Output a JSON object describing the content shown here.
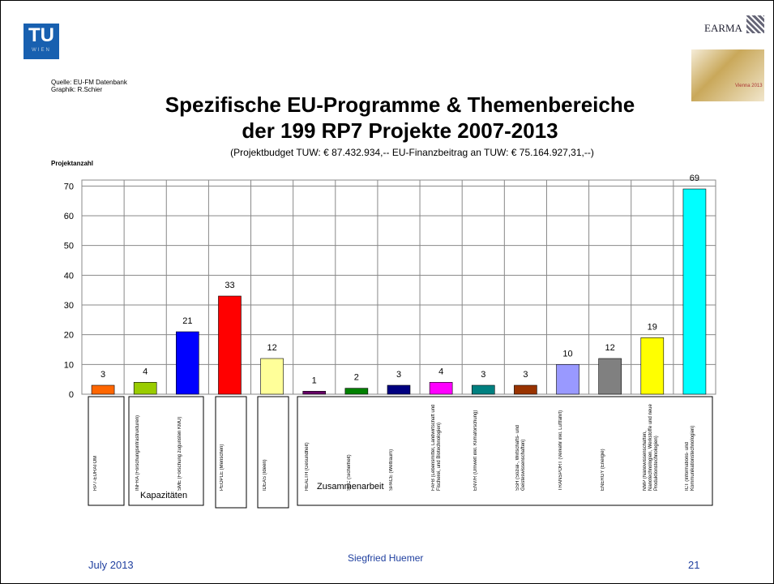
{
  "header": {
    "logo": "TU",
    "logo_sub": "WIEN",
    "partner": "EARMA",
    "partner_badge": "Vienna 2013"
  },
  "source_lines": [
    "Quelle: EU-FM Datenbank",
    "Graphik: R.Schier"
  ],
  "chart_data": {
    "type": "bar",
    "title_lines": [
      "Spezifische EU-Programme & Themenbereiche",
      "der 199 RP7 Projekte 2007-2013"
    ],
    "subtitle": "(Projektbudget TUW: € 87.432.934,--  EU-Finanzbeitrag an TUW: € 75.164.927,31,--)",
    "y_label": "Projektanzahl",
    "categories": [
      "RP7-EURATOM",
      "INFRA (Forschungsinfrastrukturen)",
      "SME (Forschung zugunsten KMU)",
      "PEOPLE (Menschen)",
      "IDEAS (Ideen)",
      "HEALTH (Gesundheit)",
      "SEC (Sicherheit)",
      "SPACE (Weltraum)",
      "FAFB (Lebensmittel, Landwirtschaft und Fischerei, und Biotechnologien)",
      "ENV/R (Umwelt inkl. Klimaforschung)",
      "SSH (Sozial-, Wirtschafts- und Geisteswissenschaften)",
      "TRANSPORT (Verkehr inkl. Luftfahrt)",
      "ENERGY (Energie)",
      "NMP (Nanowissenschaften, Nanotechnologien, Werkstoffe und neue Produktionstechnologien)",
      "ICT (Informations- und Kommunikationstechnologien)"
    ],
    "values": [
      3,
      4,
      21,
      33,
      12,
      1,
      2,
      3,
      4,
      3,
      3,
      10,
      12,
      19,
      69
    ],
    "colors": [
      "#ff6600",
      "#99cc00",
      "#0000ff",
      "#ff0000",
      "#ffff99",
      "#660066",
      "#008000",
      "#000080",
      "#ff00ff",
      "#008080",
      "#993300",
      "#9999ff",
      "#808080",
      "#ffff00",
      "#00ffff"
    ],
    "group_labels": [
      "Kapazitäten",
      "Zusammenarbeit"
    ],
    "ylim": [
      0,
      72
    ],
    "yticks": [
      0,
      10,
      20,
      30,
      40,
      50,
      60,
      70
    ],
    "grid": true
  },
  "footer": {
    "date": "July 2013",
    "author": "Siegfried Huemer",
    "page": "21"
  }
}
